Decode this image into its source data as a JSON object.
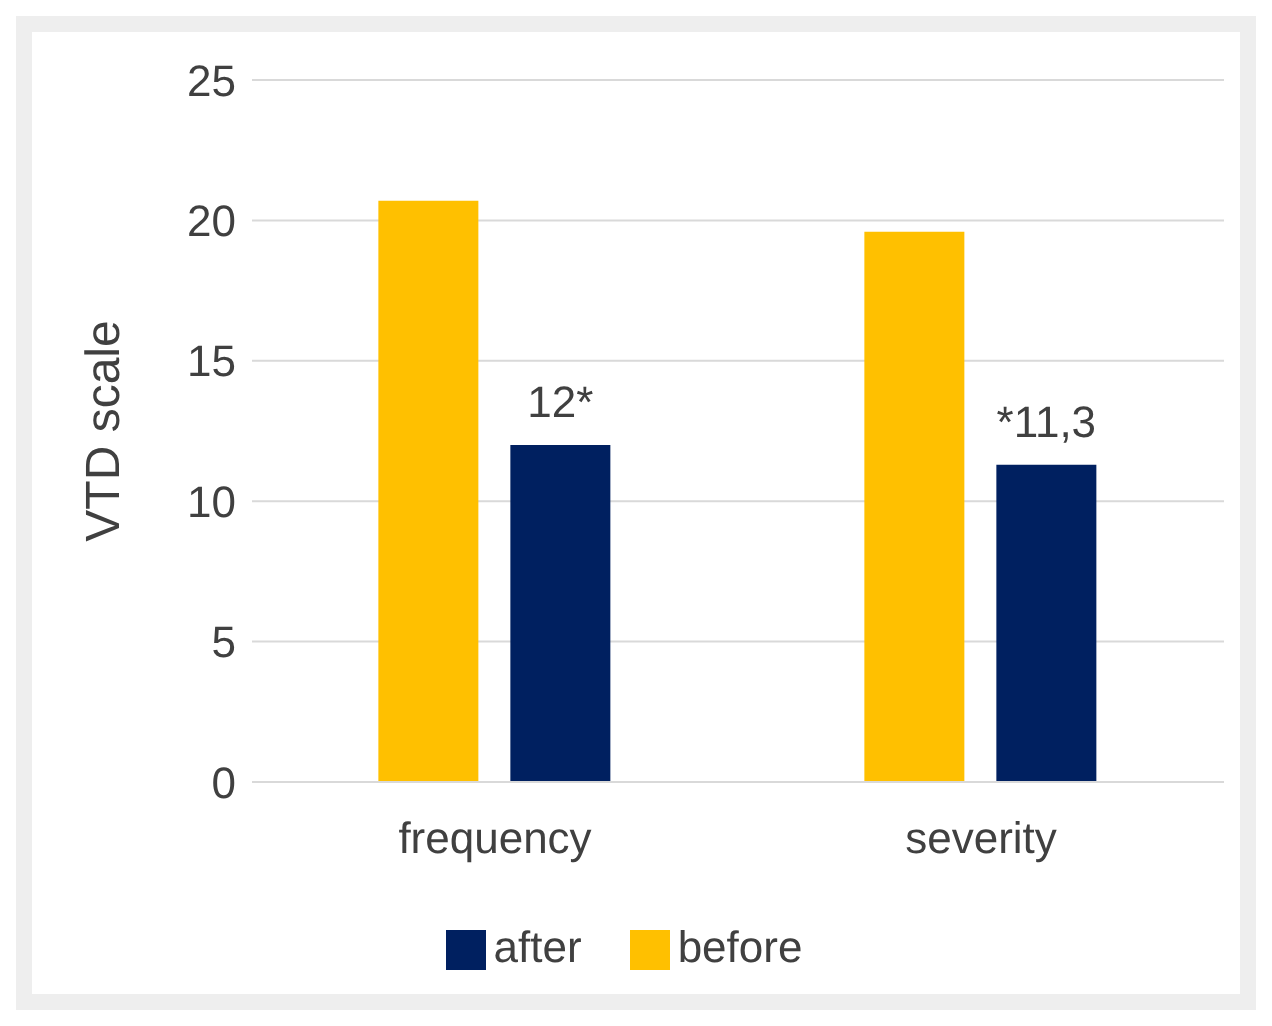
{
  "chart_data": {
    "type": "bar",
    "ylabel": "VTD scale",
    "categories": [
      "frequency",
      "severity"
    ],
    "series": [
      {
        "name": "before",
        "color": "#ffc000",
        "values": [
          20.7,
          19.6
        ]
      },
      {
        "name": "after",
        "color": "#002060",
        "values": [
          12,
          11.3
        ],
        "value_labels": [
          "12*",
          "*11,3"
        ]
      }
    ],
    "ylim": [
      0,
      25
    ],
    "yticks": [
      0,
      5,
      10,
      15,
      20,
      25
    ],
    "grid": "y",
    "legend": "bottom"
  }
}
